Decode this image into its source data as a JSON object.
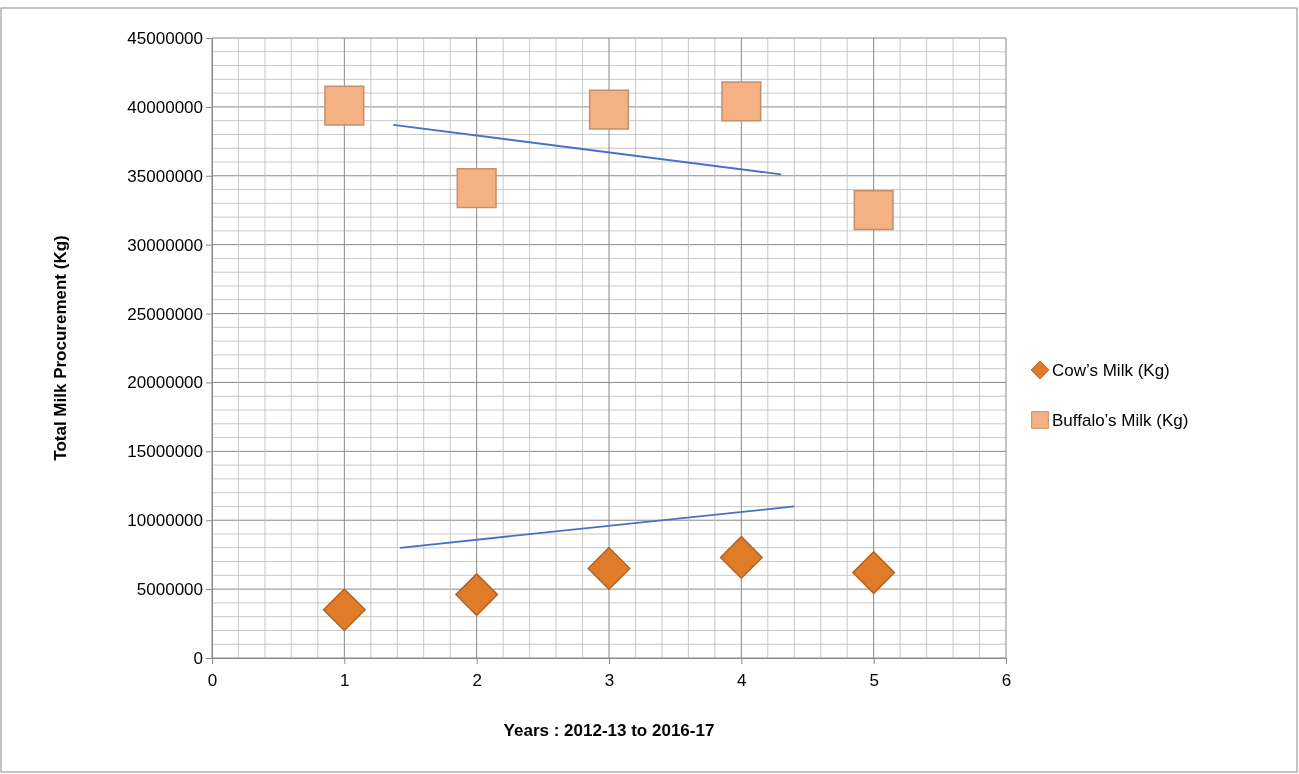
{
  "chart_data": {
    "type": "scatter",
    "xlabel": "Years : 2012-13 to 2016-17",
    "ylabel": "Total Milk Procurement (Kg)",
    "xlim": [
      0,
      6
    ],
    "xticks": [
      0,
      1,
      2,
      3,
      4,
      5,
      6
    ],
    "ylim": [
      0,
      45000000
    ],
    "yticks": [
      0,
      5000000,
      10000000,
      15000000,
      20000000,
      25000000,
      30000000,
      35000000,
      40000000,
      45000000
    ],
    "grid": true,
    "legend": "right",
    "series": [
      {
        "name": "Cow’s Milk (Kg)",
        "color": "#e07b2a",
        "marker": "diamond",
        "x": [
          1,
          2,
          3,
          4,
          5
        ],
        "values": [
          3500000,
          4600000,
          6500000,
          7300000,
          6200000
        ]
      },
      {
        "name": "Buffalo’s Milk (Kg)",
        "color": "#f4b183",
        "marker": "square",
        "x": [
          1,
          2,
          3,
          4,
          5
        ],
        "values": [
          40100000,
          34100000,
          39800000,
          40400000,
          32500000
        ]
      },
      {
        "type": "line",
        "color": "#4472c4",
        "marker": "none",
        "x": [
          1.37,
          4.3
        ],
        "values": [
          38700000,
          35100000
        ]
      },
      {
        "type": "line",
        "color": "#4472c4",
        "marker": "none",
        "x": [
          1.42,
          4.4
        ],
        "values": [
          8000000,
          11000000
        ]
      }
    ]
  }
}
